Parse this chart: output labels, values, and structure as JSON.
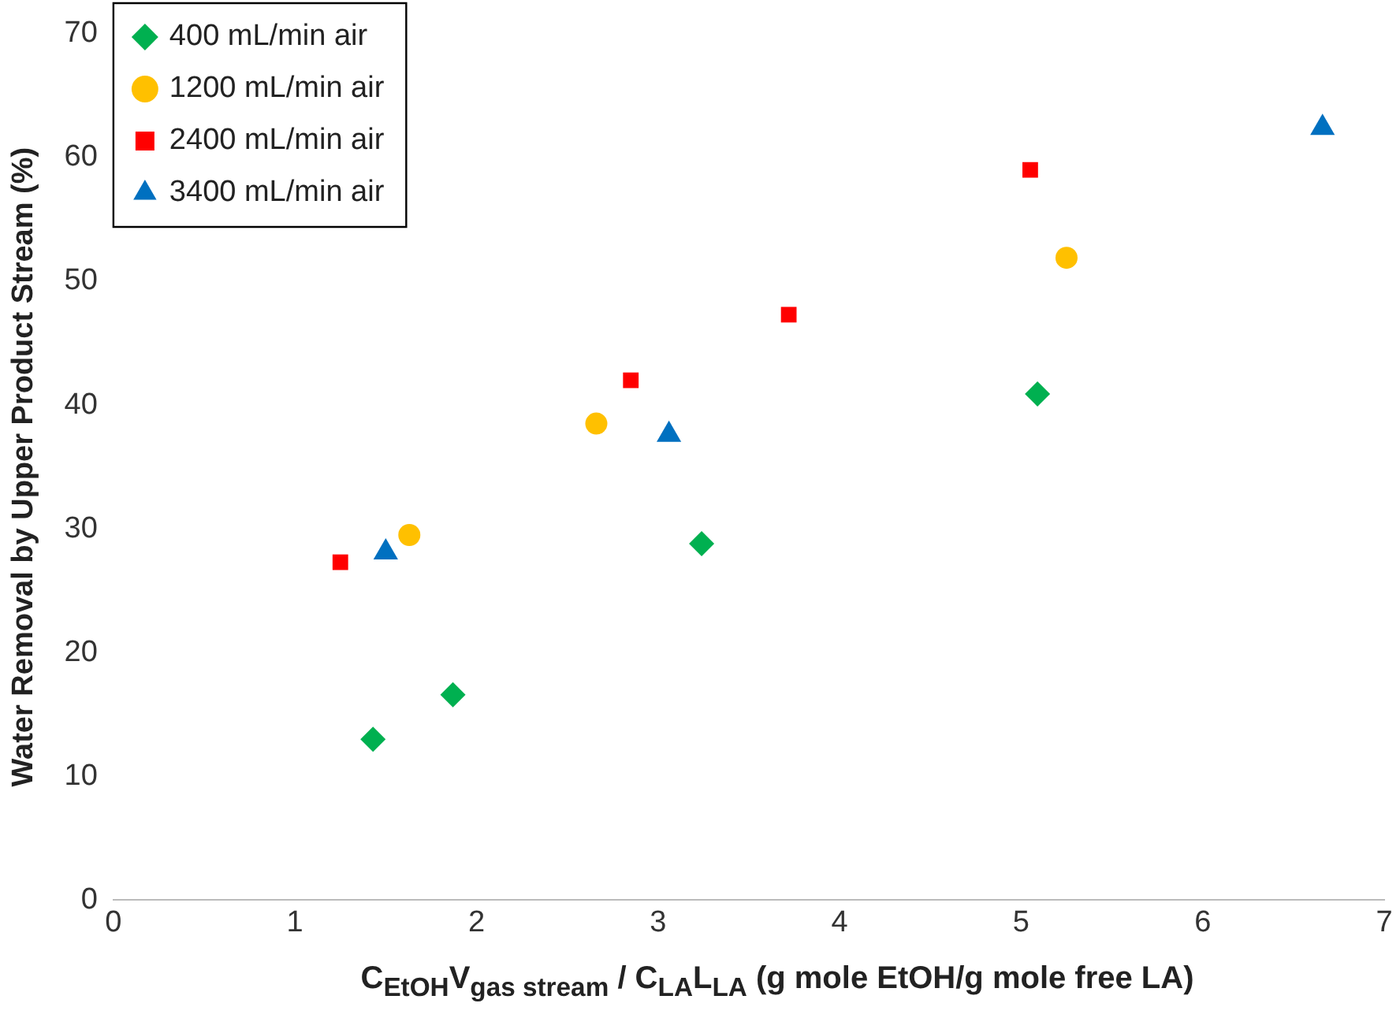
{
  "chart_data": {
    "type": "scatter",
    "xlabel": "C$_{EtOH}$V$_{gas stream}$ / C$_{LA}$L$_{LA}$ (g mole EtOH/g mole free LA)",
    "ylabel": "Water Removal by Upper Product Stream (%)",
    "xlim": [
      0,
      7
    ],
    "xticks": [
      0,
      1,
      2,
      3,
      4,
      5,
      6,
      7
    ],
    "ylim": [
      0,
      70
    ],
    "yticks": [
      0,
      10,
      20,
      30,
      40,
      50,
      60,
      70
    ],
    "grid": false,
    "legend": "top left",
    "series": [
      {
        "name": "400 mL/min air",
        "color": "#00b050",
        "marker": "diamond",
        "x": [
          1.43,
          1.87,
          3.24,
          5.09
        ],
        "values": [
          13.0,
          16.6,
          28.8,
          40.9
        ]
      },
      {
        "name": "1200 mL/min air",
        "color": "#ffc000",
        "marker": "circle",
        "x": [
          1.63,
          2.66,
          5.25
        ],
        "values": [
          29.5,
          38.5,
          51.9
        ]
      },
      {
        "name": "2400 mL/min air",
        "color": "#ff0000",
        "marker": "square",
        "x": [
          1.25,
          2.85,
          3.72,
          5.05
        ],
        "values": [
          27.3,
          42.0,
          47.3,
          59.0
        ]
      },
      {
        "name": "3400 mL/min air",
        "color": "#0070c0",
        "marker": "triangle",
        "x": [
          1.5,
          3.06,
          6.66
        ],
        "values": [
          28.1,
          37.6,
          62.4
        ]
      }
    ]
  }
}
